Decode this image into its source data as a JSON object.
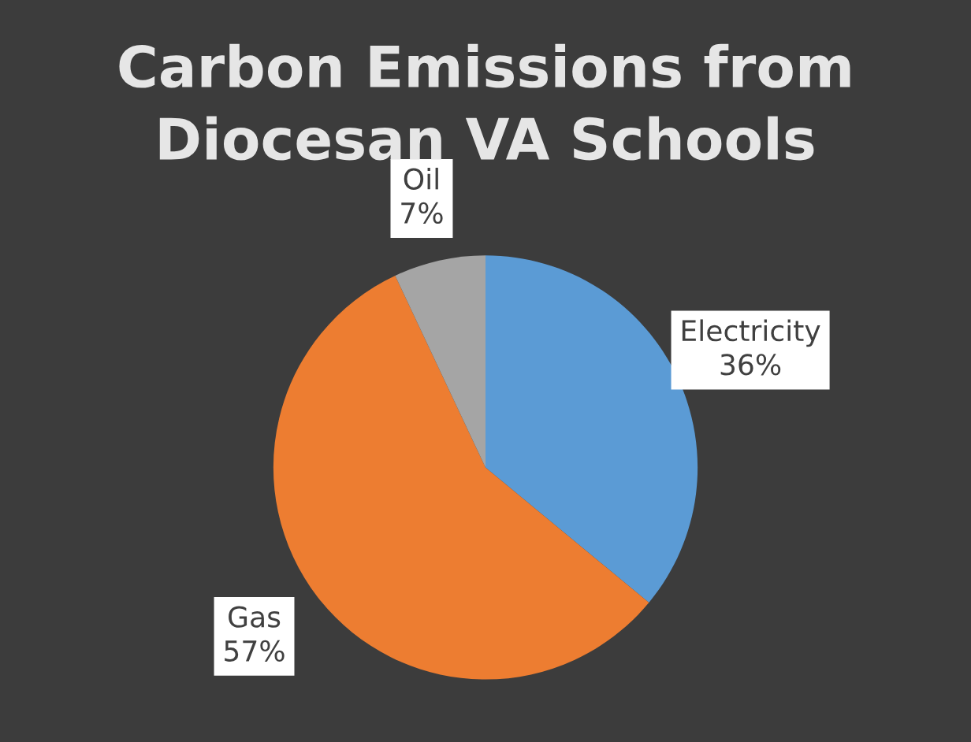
{
  "chart_data": {
    "type": "pie",
    "title": "Carbon Emissions from Diocesan VA Schools",
    "categories": [
      "Electricity",
      "Gas",
      "Oil"
    ],
    "values": [
      36,
      57,
      7
    ],
    "colors": [
      "#5b9bd5",
      "#ed7d31",
      "#a5a5a5"
    ],
    "value_labels": [
      "36%",
      "57%",
      "7%"
    ],
    "legend": false
  }
}
